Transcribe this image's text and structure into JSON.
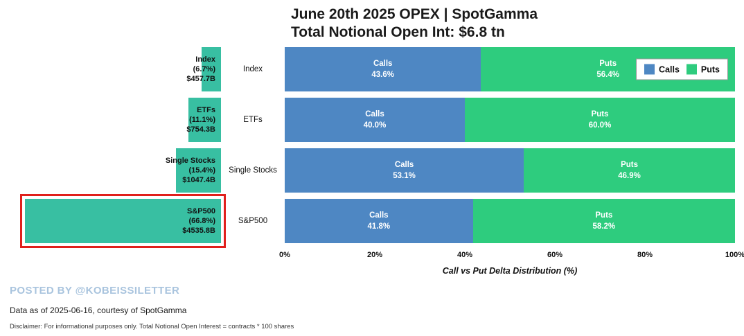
{
  "chart_data": {
    "type": "bar",
    "title": "June 20th 2025 OPEX | SpotGamma",
    "subtitle": "Total Notional Open Int: $6.8 tn",
    "categories": [
      "Index",
      "ETFs",
      "Single Stocks",
      "S&P500"
    ],
    "notional_share": {
      "values_pct": [
        6.7,
        11.1,
        15.4,
        66.8
      ],
      "notional": [
        "$457.7B",
        "$754.3B",
        "$1047.4B",
        "$4535.8B"
      ],
      "max_pct": 66.8,
      "bar_color": "#38bfa2",
      "highlighted_category": "S&P500",
      "highlight_color": "#e0201c"
    },
    "delta_distribution": {
      "series": [
        {
          "name": "Calls",
          "color": "#4e87c3",
          "values": [
            43.6,
            40.0,
            53.1,
            41.8
          ]
        },
        {
          "name": "Puts",
          "color": "#2ecc7e",
          "values": [
            56.4,
            60.0,
            46.9,
            58.2
          ]
        }
      ],
      "x_ticks": [
        "0%",
        "20%",
        "40%",
        "60%",
        "80%",
        "100%"
      ],
      "xlim": [
        0,
        100
      ],
      "xlabel": "Call vs Put Delta Distribution (%)",
      "legend": [
        "Calls",
        "Puts"
      ],
      "legend_position": "top-right",
      "grid": false
    },
    "rows": [
      {
        "category": "Index",
        "share_pct_label": "(6.7%)",
        "notional_label": "$457.7B",
        "calls_pct_label": "43.6%",
        "puts_pct_label": "56.4%"
      },
      {
        "category": "ETFs",
        "share_pct_label": "(11.1%)",
        "notional_label": "$754.3B",
        "calls_pct_label": "40.0%",
        "puts_pct_label": "60.0%"
      },
      {
        "category": "Single Stocks",
        "share_pct_label": "(15.4%)",
        "notional_label": "$1047.4B",
        "calls_pct_label": "53.1%",
        "puts_pct_label": "46.9%"
      },
      {
        "category": "S&P500",
        "share_pct_label": "(66.8%)",
        "notional_label": "$4535.8B",
        "calls_pct_label": "41.8%",
        "puts_pct_label": "58.2%"
      }
    ]
  },
  "footer": {
    "posted_by": "POSTED BY @KOBEISSILETTER",
    "data_note": "Data as of 2025-06-16, courtesy of SpotGamma",
    "disclaimer": "Disclaimer: For informational purposes only. Total Notional Open Interest = contracts * 100 shares"
  }
}
